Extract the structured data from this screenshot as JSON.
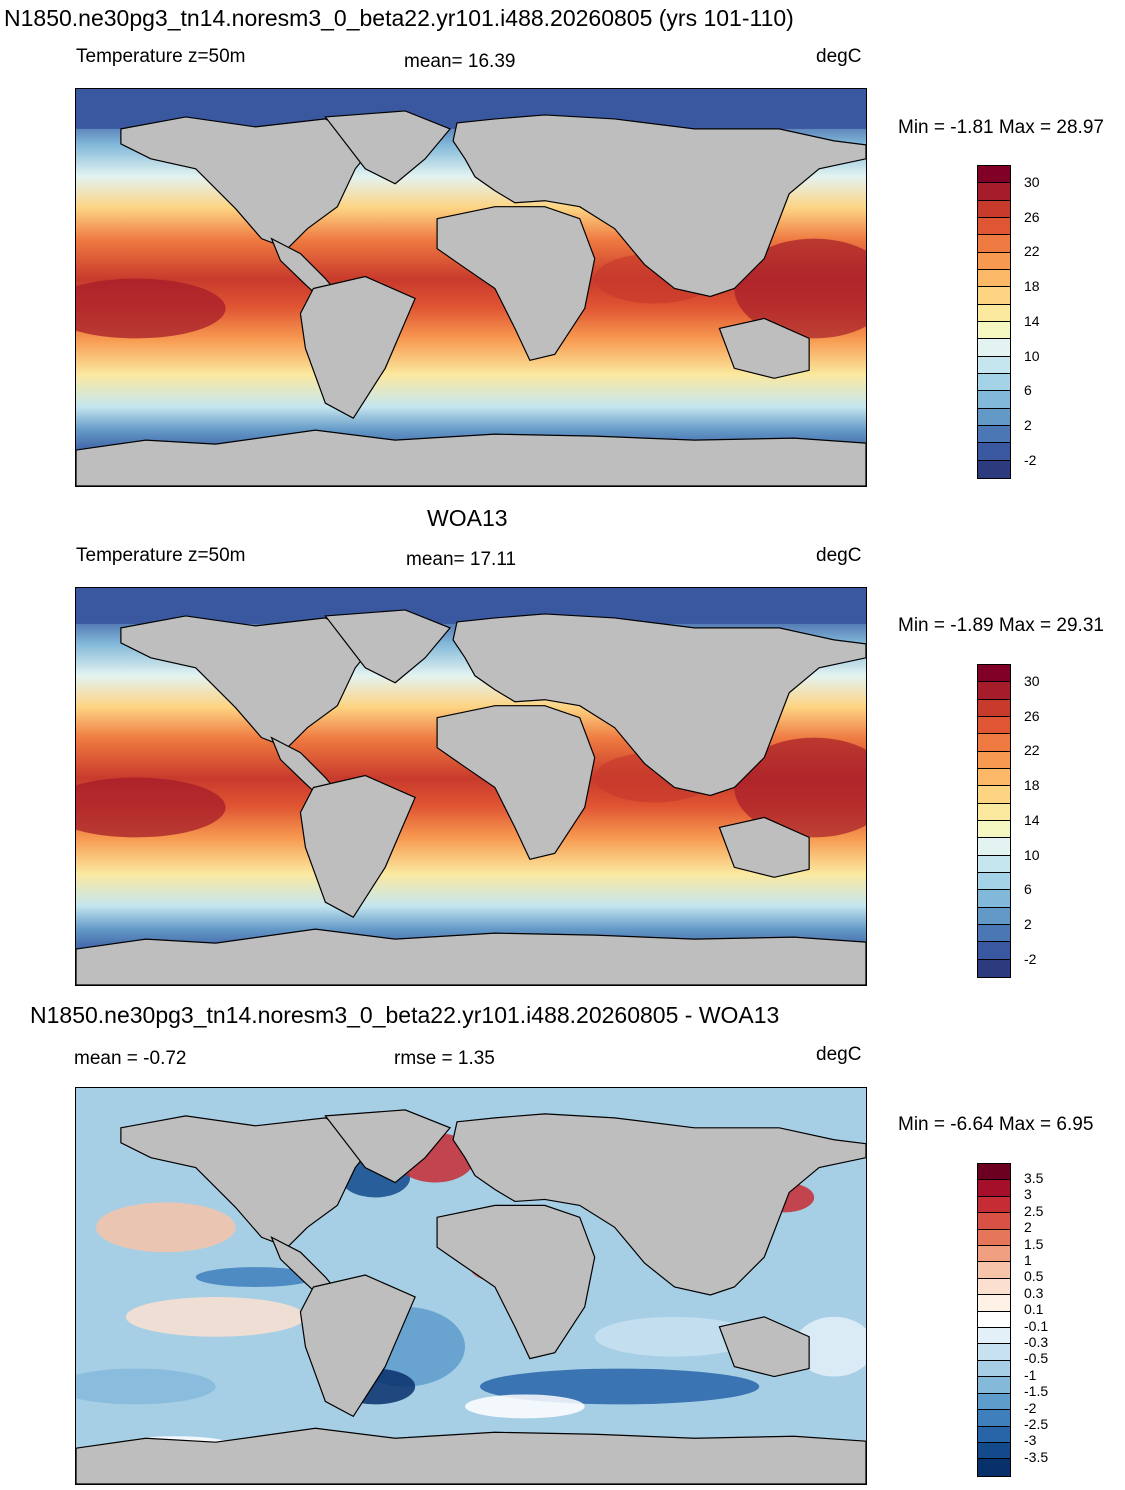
{
  "panel1": {
    "title": "N1850.ne30pg3_tn14.noresm3_0_beta22.yr101.i488.20260805 (yrs 101-110)",
    "left_label": "Temperature z=50m",
    "center_label": "mean=  16.39",
    "units": "degC",
    "minmax": "Min =  -1.81 Max =  28.97",
    "cbar_ticks": [
      "30",
      "26",
      "22",
      "18",
      "14",
      "10",
      "6",
      "2",
      "-2"
    ]
  },
  "panel2": {
    "title": "WOA13",
    "left_label": "Temperature z=50m",
    "center_label": "mean=  17.11",
    "units": "degC",
    "minmax": "Min =  -1.89 Max =  29.31",
    "cbar_ticks": [
      "30",
      "26",
      "22",
      "18",
      "14",
      "10",
      "6",
      "2",
      "-2"
    ]
  },
  "panel3": {
    "title": "N1850.ne30pg3_tn14.noresm3_0_beta22.yr101.i488.20260805 - WOA13",
    "left_label": "mean =  -0.72",
    "center_label": "rmse =   1.35",
    "units": "degC",
    "minmax": "Min =  -6.64 Max =   6.95",
    "cbar_ticks": [
      "3.5",
      "3",
      "2.5",
      "2",
      "1.5",
      "1",
      "0.5",
      "0.3",
      "0.1",
      "-0.1",
      "-0.3",
      "-0.5",
      "-1",
      "-1.5",
      "-2",
      "-2.5",
      "-3",
      "-3.5"
    ]
  },
  "colors": {
    "land": "#bebebe",
    "temp_scale": [
      "#800026",
      "#a51c2a",
      "#c83a2c",
      "#e05533",
      "#ef7a41",
      "#f79a50",
      "#fbb866",
      "#fdd482",
      "#fbe9a0",
      "#f4f7bf",
      "#e3f3f1",
      "#c5e6ef",
      "#a4d2e6",
      "#82b8d9",
      "#6399c7",
      "#4b78b4",
      "#3a58a0",
      "#2c3a7e"
    ],
    "diff_scale": [
      "#6b0020",
      "#a50f2a",
      "#c62c33",
      "#d95145",
      "#e6765a",
      "#f09f80",
      "#f6c4a8",
      "#fbe0cf",
      "#fef1e6",
      "#ffffff",
      "#e4f0f8",
      "#c7e1f0",
      "#a6cfe6",
      "#84b9da",
      "#5e9ccb",
      "#3f7fbc",
      "#2764a8",
      "#124a8b",
      "#08306b"
    ]
  }
}
